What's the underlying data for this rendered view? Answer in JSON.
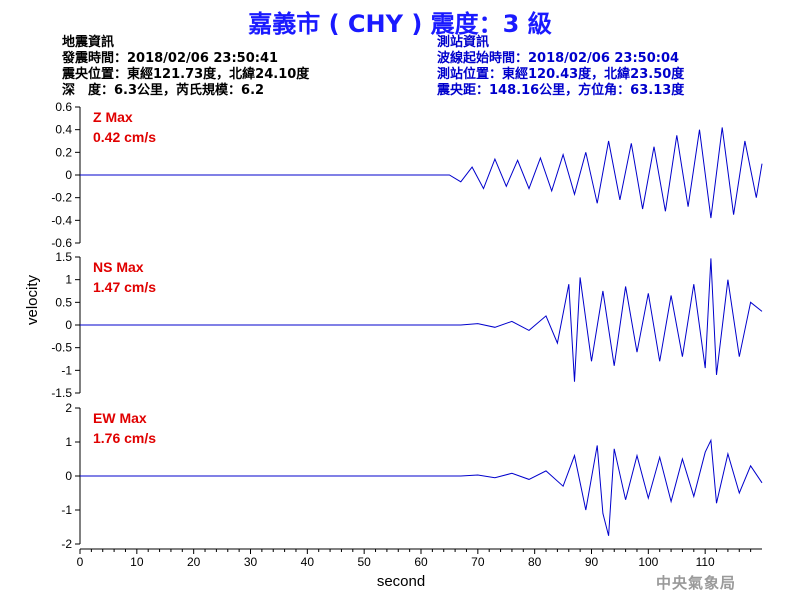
{
  "title": "嘉義市 ( CHY ) 震度：3 級",
  "quake_info": {
    "heading": "地震資訊",
    "origin_time": "發震時間：2018/02/06 23:50:41",
    "epicenter": "震央位置：東經121.73度，北緯24.10度",
    "depth_magnitude": "深　度：6.3公里，芮氏規模：6.2"
  },
  "station_info": {
    "heading": "測站資訊",
    "wave_start": "波線起始時間：2018/02/06 23:50:04",
    "station_location": "測站位置：東經120.43度，北緯23.50度",
    "epicentral_distance": "震央距：148.16公里，方位角：63.13度"
  },
  "agency": "中央氣象局",
  "colors": {
    "title": "#1a1aff",
    "trace": "#0000cc",
    "peak_label": "#e00000",
    "station_text": "#0000cc"
  },
  "chart_data": {
    "type": "line",
    "xlabel": "second",
    "ylabel": "velocity",
    "xlim": [
      0,
      120
    ],
    "xticks": [
      0,
      10,
      20,
      30,
      40,
      50,
      60,
      70,
      80,
      90,
      100,
      110
    ],
    "panels": [
      {
        "name": "Z",
        "peak_title": "Z Max",
        "peak_value": "0.42 cm/s",
        "ylim": [
          -0.6,
          0.6
        ],
        "yticks": [
          "-0.6",
          "-0.4",
          "-0.2",
          "0",
          "0.2",
          "0.4",
          "0.6"
        ],
        "x": [
          0,
          65,
          67,
          69,
          71,
          73,
          75,
          77,
          79,
          81,
          83,
          85,
          87,
          89,
          91,
          93,
          95,
          97,
          99,
          101,
          103,
          105,
          107,
          109,
          111,
          113,
          115,
          117,
          119,
          120
        ],
        "y": [
          0,
          0,
          -0.06,
          0.07,
          -0.12,
          0.14,
          -0.1,
          0.13,
          -0.12,
          0.15,
          -0.14,
          0.18,
          -0.17,
          0.2,
          -0.25,
          0.3,
          -0.22,
          0.28,
          -0.3,
          0.25,
          -0.32,
          0.35,
          -0.28,
          0.4,
          -0.38,
          0.42,
          -0.35,
          0.3,
          -0.2,
          0.1
        ]
      },
      {
        "name": "NS",
        "peak_title": "NS Max",
        "peak_value": "1.47 cm/s",
        "ylim": [
          -1.5,
          1.5
        ],
        "yticks": [
          "-1.5",
          "-1",
          "-0.5",
          "0",
          "0.5",
          "1",
          "1.5"
        ],
        "x": [
          0,
          67,
          70,
          73,
          76,
          79,
          82,
          84,
          86,
          87,
          88,
          90,
          92,
          94,
          96,
          98,
          100,
          102,
          104,
          106,
          108,
          110,
          111,
          112,
          114,
          116,
          118,
          120
        ],
        "y": [
          0,
          0,
          0.03,
          -0.05,
          0.08,
          -0.12,
          0.2,
          -0.4,
          0.9,
          -1.25,
          1.05,
          -0.8,
          0.75,
          -0.9,
          0.85,
          -0.6,
          0.7,
          -0.8,
          0.65,
          -0.7,
          0.9,
          -0.95,
          1.47,
          -1.1,
          1.0,
          -0.7,
          0.5,
          0.3
        ]
      },
      {
        "name": "EW",
        "peak_title": "EW Max",
        "peak_value": "1.76 cm/s",
        "ylim": [
          -2,
          2
        ],
        "yticks": [
          "-2",
          "-1",
          "0",
          "1",
          "2"
        ],
        "x": [
          0,
          67,
          70,
          73,
          76,
          79,
          82,
          85,
          87,
          89,
          91,
          92,
          93,
          94,
          96,
          98,
          100,
          102,
          104,
          106,
          108,
          110,
          111,
          112,
          114,
          116,
          118,
          120
        ],
        "y": [
          0,
          0,
          0.03,
          -0.05,
          0.08,
          -0.1,
          0.15,
          -0.3,
          0.6,
          -1.0,
          0.9,
          -1.1,
          -1.76,
          0.8,
          -0.7,
          0.6,
          -0.65,
          0.55,
          -0.75,
          0.5,
          -0.6,
          0.7,
          1.05,
          -0.8,
          0.65,
          -0.5,
          0.3,
          -0.2
        ]
      }
    ]
  }
}
